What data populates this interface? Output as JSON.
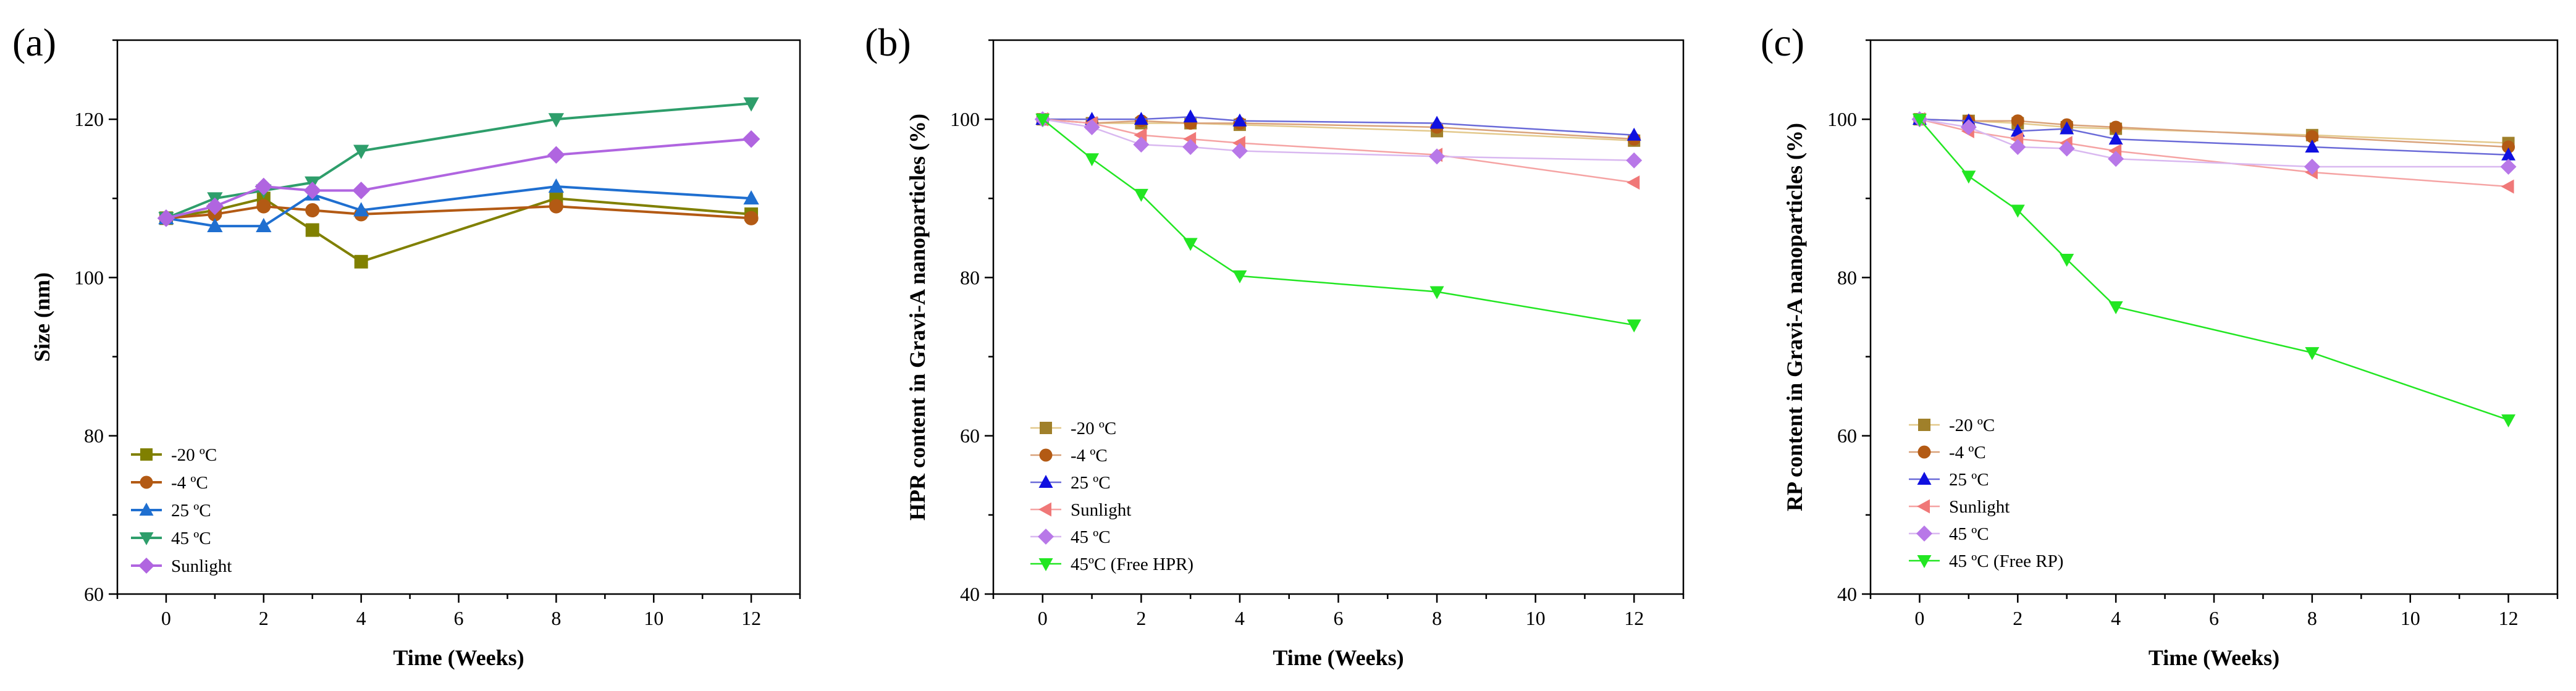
{
  "colors": {
    "m20": "#8B7A00",
    "m4": "#B35A14",
    "p25": "#1F6FD0",
    "p45": "#2E9E6B",
    "sun": "#B065E0"
  },
  "chart_data": [
    {
      "type": "line",
      "panel_label": "(a)",
      "xlabel": "Time (Weeks)",
      "ylabel": "Size (nm)",
      "xlim": [
        -1,
        13
      ],
      "ylim": [
        60,
        130
      ],
      "xticks": [
        0,
        2,
        4,
        6,
        8,
        10,
        12
      ],
      "yticks": [
        60,
        80,
        100,
        120
      ],
      "legend_position": "bottom-left",
      "series": [
        {
          "name": "-20 ºC",
          "marker": "square",
          "color": "#808000",
          "line_color": "#808000",
          "x": [
            0,
            1,
            2,
            3,
            4,
            8,
            12
          ],
          "y": [
            107.5,
            108.5,
            110,
            106,
            102,
            110,
            108
          ]
        },
        {
          "name": "-4 ºC",
          "marker": "circle",
          "color": "#B35A14",
          "line_color": "#B35A14",
          "x": [
            0,
            1,
            2,
            3,
            4,
            8,
            12
          ],
          "y": [
            107.5,
            108,
            109,
            108.5,
            108,
            109,
            107.5
          ]
        },
        {
          "name": "25 ºC",
          "marker": "triangle-up",
          "color": "#1F6FD0",
          "line_color": "#1F6FD0",
          "x": [
            0,
            1,
            2,
            3,
            4,
            8,
            12
          ],
          "y": [
            107.5,
            106.5,
            106.5,
            110.5,
            108.5,
            111.5,
            110
          ]
        },
        {
          "name": "45 ºC",
          "marker": "triangle-down",
          "color": "#2E9E6B",
          "line_color": "#2E9E6B",
          "x": [
            0,
            1,
            2,
            3,
            4,
            8,
            12
          ],
          "y": [
            107.5,
            110,
            111,
            112,
            116,
            120,
            122
          ]
        },
        {
          "name": "Sunlight",
          "marker": "diamond",
          "color": "#B065E0",
          "line_color": "#B065E0",
          "x": [
            0,
            1,
            2,
            3,
            4,
            8,
            12
          ],
          "y": [
            107.5,
            109,
            111.5,
            111,
            111,
            115.5,
            117.5
          ]
        }
      ]
    },
    {
      "type": "line",
      "panel_label": "(b)",
      "xlabel": "Time (Weeks)",
      "ylabel": "HPR content in Gravi-A nanoparticles (%)",
      "xlim": [
        -1,
        13
      ],
      "ylim": [
        40,
        110
      ],
      "xticks": [
        0,
        2,
        4,
        6,
        8,
        10,
        12
      ],
      "yticks": [
        40,
        60,
        80,
        100
      ],
      "legend_position": "bottom-left",
      "series": [
        {
          "name": "-20 ºC",
          "marker": "square",
          "color": "#A0802A",
          "line_color": "#E3C98C",
          "x": [
            0,
            1,
            2,
            3,
            4,
            8,
            12
          ],
          "y": [
            100,
            99.5,
            99.5,
            99.5,
            99.3,
            98.5,
            97.3
          ]
        },
        {
          "name": "-4 ºC",
          "marker": "circle",
          "color": "#B35A14",
          "line_color": "#D9A27A",
          "x": [
            0,
            1,
            2,
            3,
            4,
            8,
            12
          ],
          "y": [
            100,
            99.5,
            99.8,
            99.5,
            99.5,
            99,
            97.5
          ]
        },
        {
          "name": "25 ºC",
          "marker": "triangle-up",
          "color": "#1010E0",
          "line_color": "#6A6AD8",
          "x": [
            0,
            1,
            2,
            3,
            4,
            8,
            12
          ],
          "y": [
            100,
            100,
            100,
            100.3,
            99.8,
            99.5,
            98
          ]
        },
        {
          "name": " Sunlight",
          "marker": "triangle-left",
          "color": "#F07878",
          "line_color": "#F5A3A3",
          "x": [
            0,
            1,
            2,
            3,
            4,
            8,
            12
          ],
          "y": [
            100,
            99.5,
            98,
            97.5,
            97,
            95.5,
            92
          ]
        },
        {
          "name": "45 ºC",
          "marker": "diamond",
          "color": "#B878E8",
          "line_color": "#D9B8F0",
          "x": [
            0,
            1,
            2,
            3,
            4,
            8,
            12
          ],
          "y": [
            100,
            99,
            96.8,
            96.5,
            96,
            95.3,
            94.8
          ]
        },
        {
          "name": "45ºC (Free HPR)",
          "marker": "triangle-down",
          "color": "#22E622",
          "line_color": "#22E622",
          "x": [
            0,
            1,
            2,
            3,
            4,
            8,
            12
          ],
          "y": [
            100,
            95,
            90.5,
            84.3,
            80.2,
            78.2,
            74
          ]
        }
      ]
    },
    {
      "type": "line",
      "panel_label": "(c)",
      "xlabel": "Time (Weeks)",
      "ylabel": "RP content in Gravi-A nanoparticles (%)",
      "xlim": [
        -1,
        13
      ],
      "ylim": [
        40,
        110
      ],
      "xticks": [
        0,
        2,
        4,
        6,
        8,
        10,
        12
      ],
      "yticks": [
        40,
        60,
        80,
        100
      ],
      "legend_position": "bottom-left",
      "series": [
        {
          "name": "-20 ºC",
          "marker": "square",
          "color": "#A0802A",
          "line_color": "#E3C98C",
          "x": [
            0,
            1,
            2,
            3,
            4,
            8,
            12
          ],
          "y": [
            100,
            99.8,
            99.5,
            99,
            98.8,
            98,
            97
          ]
        },
        {
          "name": "-4 ºC",
          "marker": "circle",
          "color": "#B35A14",
          "line_color": "#D9A27A",
          "x": [
            0,
            1,
            2,
            3,
            4,
            8,
            12
          ],
          "y": [
            100,
            99.8,
            99.8,
            99.3,
            99,
            97.8,
            96.5
          ]
        },
        {
          "name": "25 ºC",
          "marker": "triangle-up",
          "color": "#1010E0",
          "line_color": "#6A6AD8",
          "x": [
            0,
            1,
            2,
            3,
            4,
            8,
            12
          ],
          "y": [
            100,
            99.8,
            98.5,
            98.8,
            97.5,
            96.5,
            95.5
          ]
        },
        {
          "name": " Sunlight",
          "marker": "triangle-left",
          "color": "#F07878",
          "line_color": "#F5A3A3",
          "x": [
            0,
            1,
            2,
            3,
            4,
            8,
            12
          ],
          "y": [
            100,
            98.5,
            97.5,
            97,
            96,
            93.3,
            91.5
          ]
        },
        {
          "name": "45 ºC",
          "marker": "diamond",
          "color": "#B878E8",
          "line_color": "#D9B8F0",
          "x": [
            0,
            1,
            2,
            3,
            4,
            8,
            12
          ],
          "y": [
            100,
            99,
            96.5,
            96.3,
            95,
            94,
            94
          ]
        },
        {
          "name": "45 ºC (Free RP)",
          "marker": "triangle-down",
          "color": "#22E622",
          "line_color": "#22E622",
          "x": [
            0,
            1,
            2,
            3,
            4,
            8,
            12
          ],
          "y": [
            100,
            92.8,
            88.5,
            82.3,
            76.3,
            70.5,
            62
          ]
        }
      ]
    }
  ]
}
